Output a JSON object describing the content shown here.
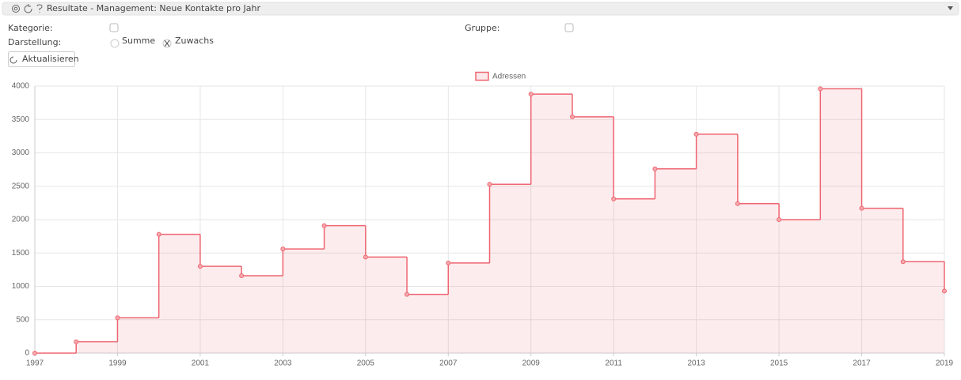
{
  "header": {
    "title": "Resultate - Management: Neue Kontakte pro Jahr"
  },
  "form": {
    "category_label": "Kategorie:",
    "group_label": "Gruppe:",
    "display_label": "Darstellung:",
    "option_sum": "Summe",
    "option_growth": "Zuwachs",
    "refresh_button": "Aktualisieren"
  },
  "chart_data": {
    "type": "step",
    "x": [
      1997,
      1998,
      1999,
      2000,
      2001,
      2002,
      2003,
      2004,
      2005,
      2006,
      2007,
      2008,
      2009,
      2010,
      2011,
      2012,
      2013,
      2014,
      2015,
      2016,
      2017,
      2018,
      2019
    ],
    "series": [
      {
        "name": "Adressen",
        "color": "#ee6570",
        "values": [
          0,
          170,
          530,
          1780,
          1300,
          1160,
          1560,
          1910,
          1440,
          880,
          1350,
          2530,
          3880,
          3540,
          2310,
          2760,
          3280,
          2240,
          2000,
          3960,
          2170,
          1370,
          930
        ]
      }
    ],
    "xlim": [
      1997,
      2019
    ],
    "xticks": [
      1997,
      1999,
      2001,
      2003,
      2005,
      2007,
      2009,
      2011,
      2013,
      2015,
      2017,
      2019
    ],
    "ylim": [
      0,
      4000
    ],
    "yticks": [
      0,
      500,
      1000,
      1500,
      2000,
      2500,
      3000,
      3500,
      4000
    ],
    "grid": true,
    "legend": "top"
  }
}
